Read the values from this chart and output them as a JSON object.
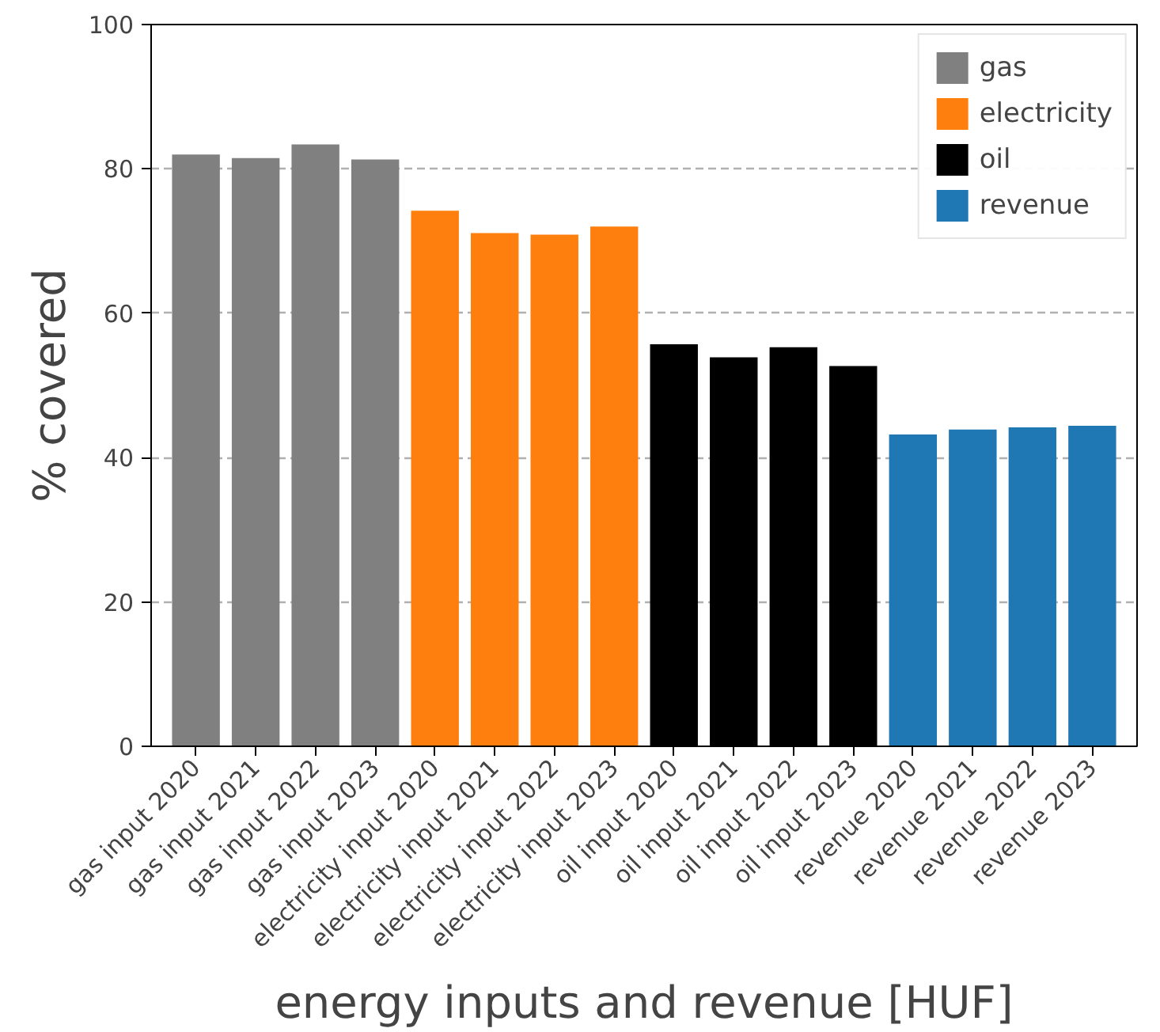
{
  "chart_data": {
    "type": "bar",
    "xlabel": "energy inputs and revenue [HUF]",
    "ylabel": "% covered",
    "categories": [
      "gas input 2020",
      "gas input 2021",
      "gas input 2022",
      "gas input 2023",
      "electricity input 2020",
      "electricity input 2021",
      "electricity input 2022",
      "electricity input 2023",
      "oil input 2020",
      "oil input 2021",
      "oil input 2022",
      "oil input 2023",
      "revenue 2020",
      "revenue 2021",
      "revenue 2022",
      "revenue 2023"
    ],
    "series": [
      {
        "name": "gas",
        "color": "#808080",
        "values": [
          82.0,
          81.5,
          83.4,
          81.3,
          null,
          null,
          null,
          null,
          null,
          null,
          null,
          null,
          null,
          null,
          null,
          null
        ]
      },
      {
        "name": "electricity",
        "color": "#ff7f0e",
        "values": [
          null,
          null,
          null,
          null,
          74.2,
          71.1,
          70.9,
          72.0,
          null,
          null,
          null,
          null,
          null,
          null,
          null,
          null
        ]
      },
      {
        "name": "oil",
        "color": "#000000",
        "values": [
          null,
          null,
          null,
          null,
          null,
          null,
          null,
          null,
          55.7,
          53.9,
          55.3,
          52.7,
          null,
          null,
          null,
          null
        ]
      },
      {
        "name": "revenue",
        "color": "#1f77b4",
        "values": [
          null,
          null,
          null,
          null,
          null,
          null,
          null,
          null,
          null,
          null,
          null,
          null,
          43.2,
          43.9,
          44.2,
          44.4
        ]
      }
    ],
    "ylim": [
      0,
      100
    ],
    "yticks": [
      0,
      20,
      40,
      60,
      80,
      100
    ],
    "grid": "y",
    "legend": "top right"
  }
}
